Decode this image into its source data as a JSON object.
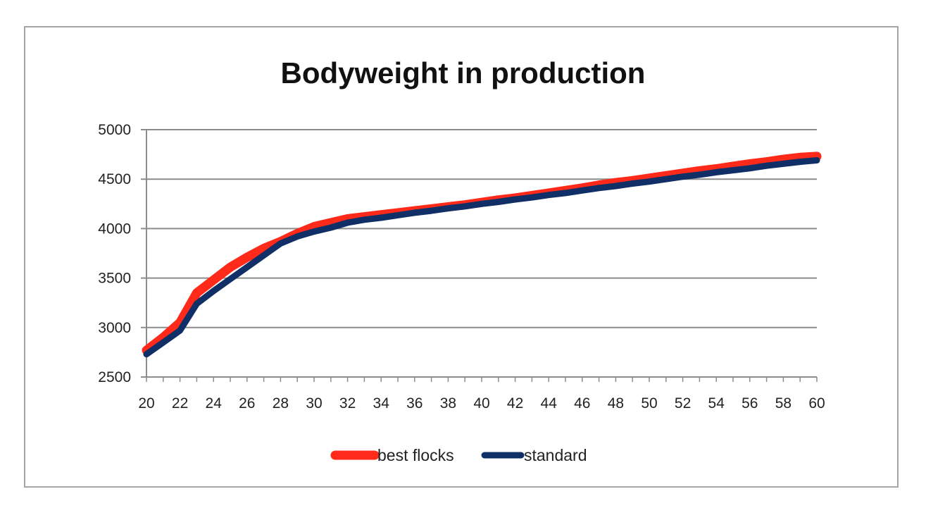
{
  "chart_data": {
    "type": "line",
    "title": "Bodyweight in production",
    "xlabel": "",
    "ylabel": "",
    "x": [
      20,
      21,
      22,
      23,
      24,
      25,
      26,
      27,
      28,
      29,
      30,
      31,
      32,
      33,
      34,
      35,
      36,
      37,
      38,
      39,
      40,
      41,
      42,
      43,
      44,
      45,
      46,
      47,
      48,
      49,
      50,
      51,
      52,
      53,
      54,
      55,
      56,
      57,
      58,
      59,
      60
    ],
    "x_ticks": [
      20,
      22,
      24,
      26,
      28,
      30,
      32,
      34,
      36,
      38,
      40,
      42,
      44,
      46,
      48,
      50,
      52,
      54,
      56,
      58,
      60
    ],
    "ylim": [
      2500,
      5000
    ],
    "y_ticks": [
      2500,
      3000,
      3500,
      4000,
      4500,
      5000
    ],
    "grid": "horizontal",
    "legend_position": "bottom",
    "series": [
      {
        "name": "best flocks",
        "color": "#ff2a1a",
        "values": [
          2770,
          2900,
          3050,
          3350,
          3480,
          3610,
          3710,
          3800,
          3870,
          3950,
          4020,
          4060,
          4100,
          4120,
          4140,
          4160,
          4180,
          4200,
          4220,
          4240,
          4265,
          4290,
          4310,
          4335,
          4360,
          4385,
          4410,
          4440,
          4465,
          4485,
          4510,
          4535,
          4560,
          4585,
          4605,
          4630,
          4655,
          4675,
          4700,
          4720,
          4730
        ]
      },
      {
        "name": "standard",
        "color": "#0f2f66",
        "values": [
          2730,
          2850,
          2970,
          3240,
          3370,
          3490,
          3610,
          3730,
          3850,
          3920,
          3970,
          4010,
          4060,
          4090,
          4110,
          4135,
          4160,
          4180,
          4205,
          4225,
          4250,
          4270,
          4295,
          4315,
          4340,
          4360,
          4385,
          4410,
          4430,
          4455,
          4475,
          4500,
          4525,
          4545,
          4570,
          4590,
          4610,
          4635,
          4655,
          4675,
          4690
        ]
      }
    ]
  }
}
